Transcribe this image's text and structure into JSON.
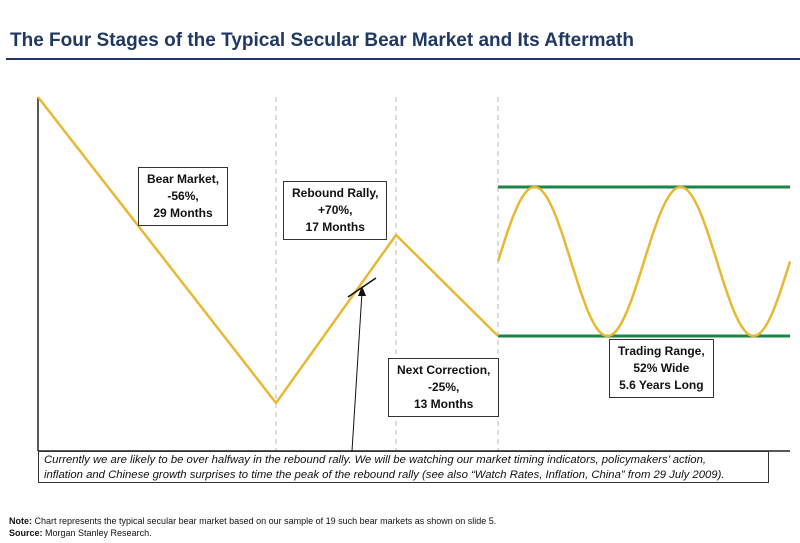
{
  "title": "The Four Stages of the Typical Secular Bear Market and Its Aftermath",
  "chart_data": {
    "type": "line",
    "title": "The Four Stages of the Typical Secular Bear Market and Its Aftermath",
    "xlabel": "",
    "ylabel": "",
    "grid": false,
    "legend": "none",
    "colors": {
      "path": "#e8b830",
      "range_lines": "#1e8449",
      "dividers": "#bbbbbb",
      "axes": "#222222"
    },
    "stages": [
      {
        "name": "Bear Market",
        "change": "-56%",
        "duration": "29 Months"
      },
      {
        "name": "Rebound Rally",
        "change": "+70%",
        "duration": "17 Months"
      },
      {
        "name": "Next Correction",
        "change": "-25%",
        "duration": "13 Months"
      },
      {
        "name": "Trading Range",
        "change": "52% Wide",
        "duration": "5.6 Years Long"
      }
    ],
    "labels": {
      "bear_market": [
        "Bear Market,",
        "-56%,",
        "29 Months"
      ],
      "rebound_rally": [
        "Rebound Rally,",
        "+70%,",
        "17 Months"
      ],
      "next_correction": [
        "Next Correction,",
        "-25%,",
        "13 Months"
      ],
      "trading_range": [
        "Trading Range,",
        "52% Wide",
        "5.6 Years Long"
      ]
    }
  },
  "commentary": [
    "Currently we are likely to be over halfway in the rebound rally.  We will be watching our market timing indicators, policymakers’ action,",
    "inflation and Chinese growth surprises to time the peak of the rebound rally (see also “Watch Rates, Inflation, China” from 29 July 2009)."
  ],
  "note": {
    "label": "Note:",
    "text": " Chart represents the typical secular bear market based on our sample of 19 such bear markets as shown on slide 5."
  },
  "source": {
    "label": "Source:",
    "text": " Morgan Stanley Research."
  }
}
